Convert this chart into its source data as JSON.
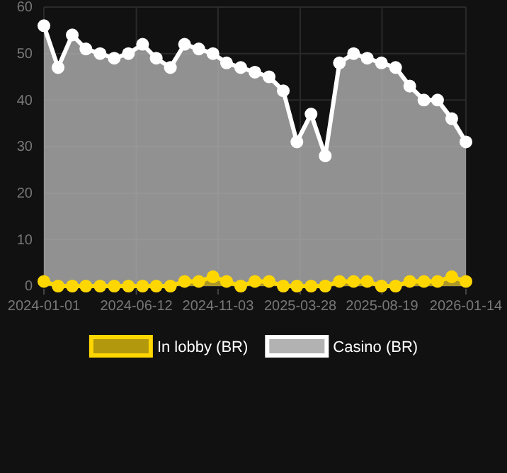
{
  "chart_data": {
    "type": "area",
    "x": [
      "2024-01-01",
      "2024-01-26",
      "2024-02-20",
      "2024-03-15",
      "2024-04-09",
      "2024-05-04",
      "2024-05-29",
      "2024-06-23",
      "2024-07-17",
      "2024-08-11",
      "2024-09-05",
      "2024-09-30",
      "2024-10-25",
      "2024-11-18",
      "2024-12-13",
      "2025-01-07",
      "2025-02-01",
      "2025-02-26",
      "2025-03-22",
      "2025-04-16",
      "2025-05-11",
      "2025-06-05",
      "2025-06-30",
      "2025-07-24",
      "2025-08-18",
      "2025-09-12",
      "2025-10-07",
      "2025-11-01",
      "2025-11-25",
      "2025-12-20",
      "2026-01-14"
    ],
    "series": [
      {
        "name": "In lobby (BR)",
        "color": "#ffd700",
        "values": [
          1,
          0,
          0,
          0,
          0,
          0,
          0,
          0,
          0,
          0,
          1,
          1,
          2,
          1,
          0,
          1,
          1,
          0,
          0,
          0,
          0,
          1,
          1,
          1,
          0,
          0,
          1,
          1,
          1,
          2,
          1
        ]
      },
      {
        "name": "Casino (BR)",
        "color": "#ffffff",
        "values": [
          56,
          47,
          54,
          51,
          50,
          49,
          50,
          52,
          49,
          47,
          52,
          51,
          50,
          48,
          47,
          46,
          45,
          42,
          31,
          37,
          28,
          48,
          50,
          49,
          48,
          47,
          43,
          40,
          40,
          36,
          31
        ]
      }
    ],
    "xlim": [
      "2024-01-01",
      "2026-01-14"
    ],
    "xticks": [
      "2024-01-01",
      "2024-06-12",
      "2024-11-03",
      "2025-03-28",
      "2025-08-19",
      "2026-01-14"
    ],
    "ylim": [
      0,
      60
    ],
    "yticks": [
      0,
      10,
      20,
      30,
      40,
      50,
      60
    ],
    "grid": true,
    "legend": "bottom",
    "marker": "circle"
  }
}
